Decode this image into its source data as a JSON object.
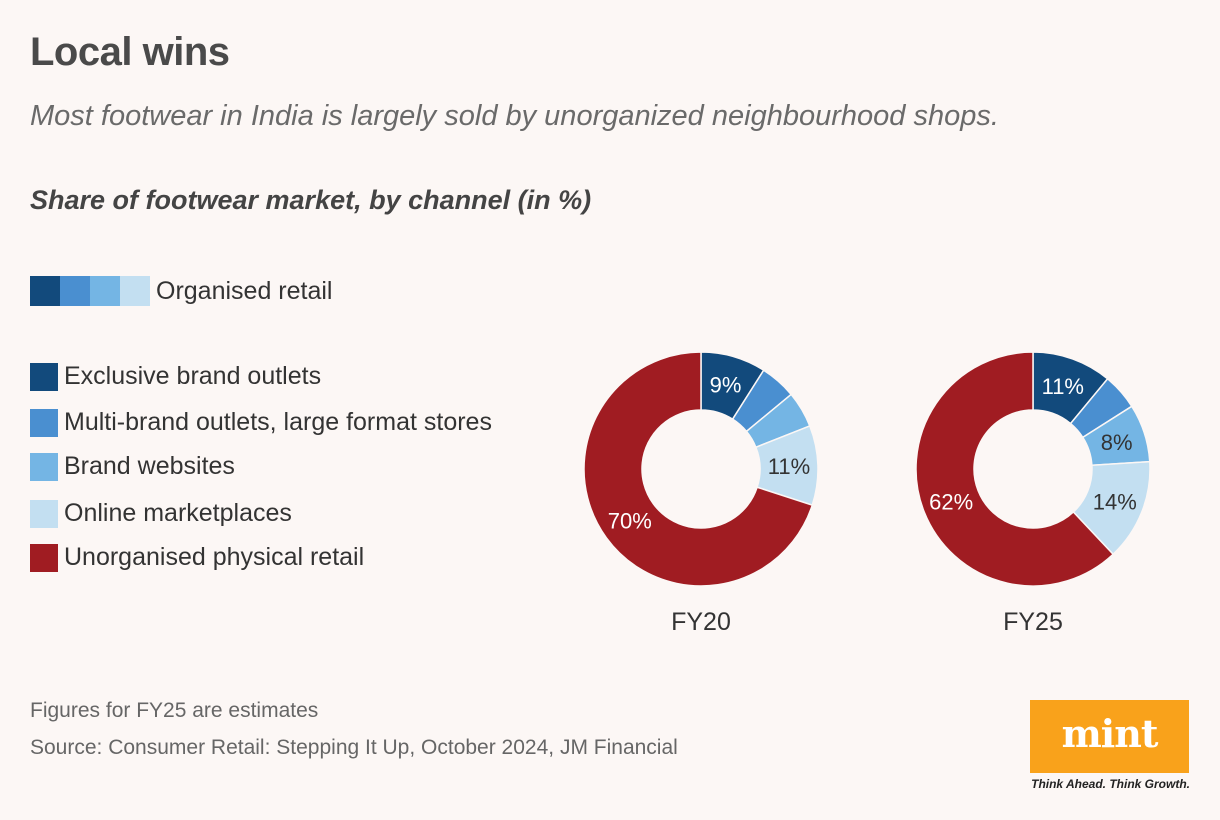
{
  "header": {
    "title": "Local wins",
    "subtitle": "Most footwear in India is largely sold by unorganized neighbourhood shops.",
    "chart_heading": "Share of footwear market, by channel (in %)"
  },
  "group_legend": {
    "label": "Organised retail",
    "colors": [
      "#124a7c",
      "#4a8fd0",
      "#74b5e4",
      "#c3dff1"
    ]
  },
  "chart_data": {
    "type": "pie",
    "variant": "donut",
    "categories": [
      "Exclusive brand outlets",
      "Multi-brand outlets, large format stores",
      "Brand websites",
      "Online marketplaces",
      "Unorganised physical retail"
    ],
    "colors": [
      "#124a7c",
      "#4a8fd0",
      "#74b5e4",
      "#c3dff1",
      "#a01c22"
    ],
    "series": [
      {
        "name": "FY20",
        "values": [
          9,
          5,
          5,
          11,
          70
        ],
        "labels": [
          "9%",
          "",
          "",
          "11%",
          "70%"
        ]
      },
      {
        "name": "FY25",
        "values": [
          11,
          5,
          8,
          14,
          62
        ],
        "labels": [
          "11%",
          "",
          "8%",
          "14%",
          "62%"
        ]
      }
    ],
    "label_colors": [
      "#ffffff",
      "#ffffff",
      "#333333",
      "#333333",
      "#ffffff"
    ]
  },
  "footer": {
    "note": "Figures for FY25 are estimates",
    "source": "Source: Consumer Retail: Stepping It Up, October 2024, JM Financial"
  },
  "logo": {
    "text": "mint",
    "tagline": "Think Ahead. Think Growth."
  }
}
